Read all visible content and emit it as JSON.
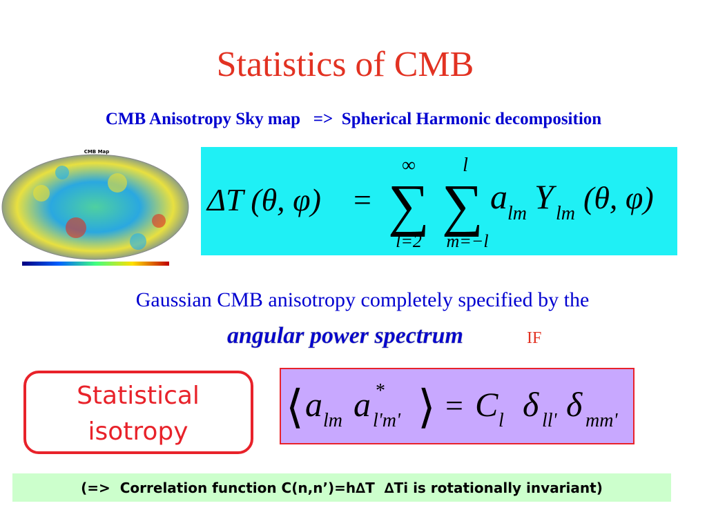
{
  "title": "Statistics of CMB",
  "subtitle": "CMB Anisotropy Sky map   =>  Spherical Harmonic decomposition",
  "sky_map": {
    "label": "CMB Map"
  },
  "equation_1": {
    "lhs": "ΔT (θ, φ)",
    "equals": "=",
    "sum_1": {
      "symbol": "∑",
      "top": "∞",
      "bottom": "l=2"
    },
    "sum_2": {
      "symbol": "∑",
      "top": "l",
      "bottom": "m=−l"
    },
    "a": "a",
    "a_sub": "lm",
    "y": "Y",
    "y_sub": "lm",
    "args": "(θ, φ)"
  },
  "statement": {
    "line_1": "Gaussian CMB  anisotropy completely specified by the",
    "emphasis": "angular power spectrum",
    "condition": "IF"
  },
  "isotropy_box": {
    "lines": [
      "Statistical",
      "isotropy"
    ]
  },
  "equation_2": {
    "open": "⟨",
    "a1": "a",
    "a1_sub": "lm",
    "a2": "a",
    "a2_sup": "*",
    "a2_sub": "l'm'",
    "close": "⟩",
    "equals": "=",
    "c": "C",
    "c_sub": "l",
    "delta_1": "δ",
    "delta_1_sub": "ll'",
    "delta_2": "δ",
    "delta_2_sub": "mm'"
  },
  "footer": "(=>  Correlation function C(n,n’)=h∆T  ∆Ti is rotationally invariant)"
}
